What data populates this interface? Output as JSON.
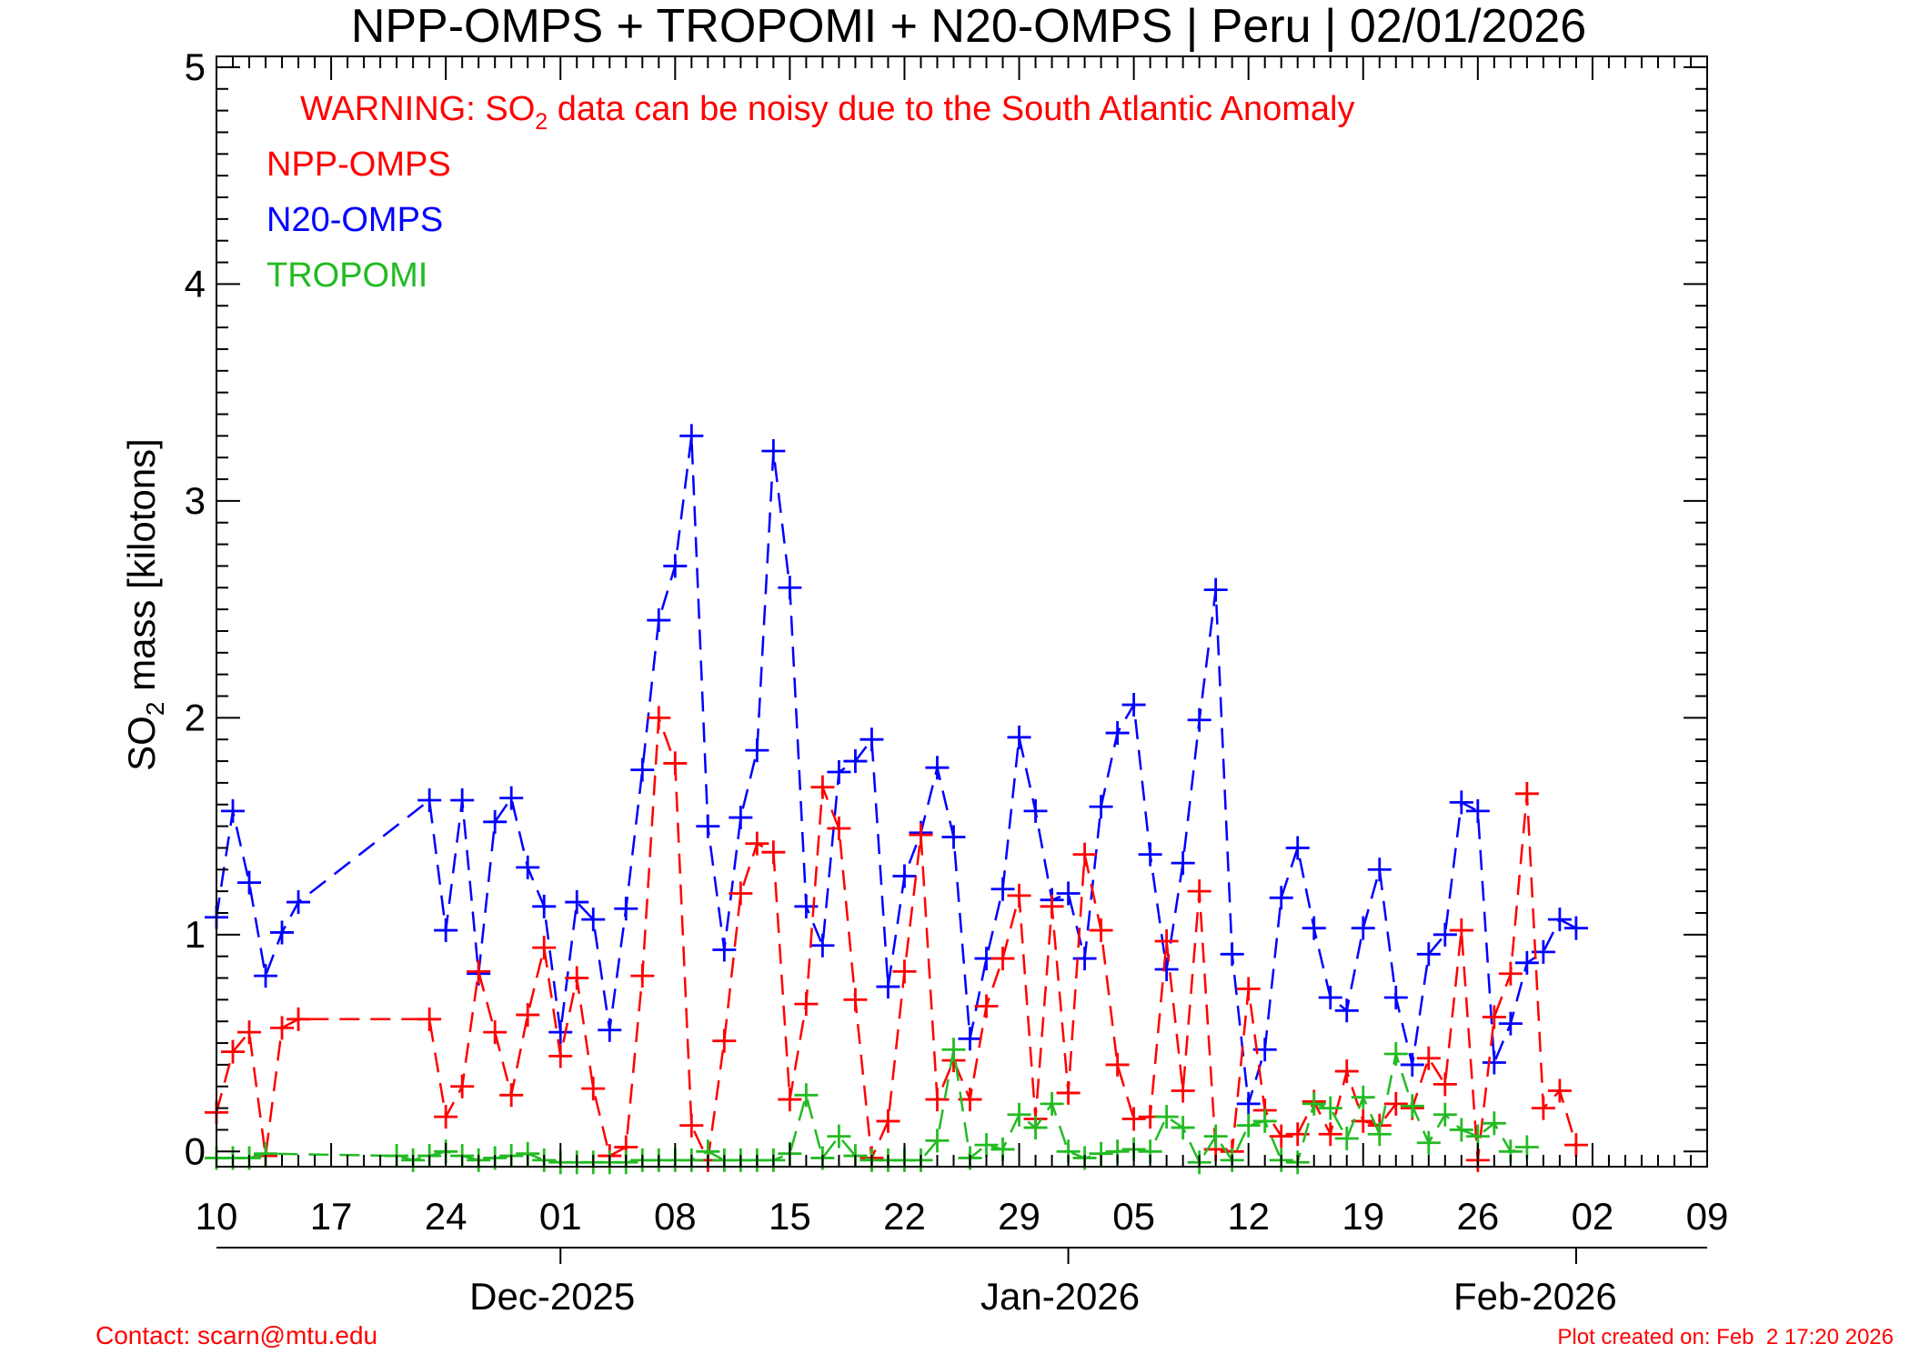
{
  "chart_data": {
    "type": "line",
    "title": "NPP-OMPS + TROPOMI + N20-OMPS | Peru | 02/01/2026",
    "ylabel_main": "SO",
    "ylabel_sub": "2",
    "ylabel_rest": " mass [kilotons]",
    "warning": {
      "prefix": "WARNING: SO",
      "sub": "2",
      "suffix": " data can be noisy due to the South Atlantic Anomaly"
    },
    "ylim": [
      -0.07,
      5.05
    ],
    "yticks": [
      0,
      1,
      2,
      3,
      4,
      5
    ],
    "x_day_range": [
      0,
      91
    ],
    "x_tick_labels": [
      "10",
      "17",
      "24",
      "01",
      "08",
      "15",
      "22",
      "29",
      "05",
      "12",
      "19",
      "26",
      "02",
      "09"
    ],
    "x_tick_days": [
      0,
      7,
      14,
      21,
      28,
      35,
      42,
      49,
      56,
      63,
      70,
      77,
      84,
      91
    ],
    "month_labels": [
      "Dec-2025",
      "Jan-2026",
      "Feb-2026"
    ],
    "month_label_days": [
      20.5,
      51.5,
      80.5
    ],
    "month_tick_days": [
      21,
      52,
      83
    ],
    "legend": [
      "NPP-OMPS",
      "N20-OMPS",
      "TROPOMI"
    ],
    "colors": {
      "NPP-OMPS": "#ff0000",
      "N20-OMPS": "#0000ff",
      "TROPOMI": "#22bb22"
    },
    "series": [
      {
        "name": "N20-OMPS",
        "points": [
          [
            0,
            1.08
          ],
          [
            1,
            1.57
          ],
          [
            2,
            1.24
          ],
          [
            3,
            0.81
          ],
          [
            4,
            1.01
          ],
          [
            5,
            1.15
          ],
          [
            13,
            1.62
          ],
          [
            14,
            1.02
          ],
          [
            15,
            1.62
          ],
          [
            16,
            0.82
          ],
          [
            17,
            1.52
          ],
          [
            18,
            1.63
          ],
          [
            19,
            1.31
          ],
          [
            20,
            1.13
          ],
          [
            21,
            0.55
          ],
          [
            22,
            1.15
          ],
          [
            23,
            1.07
          ],
          [
            24,
            0.56
          ],
          [
            25,
            1.12
          ],
          [
            26,
            1.76
          ],
          [
            27,
            2.45
          ],
          [
            28,
            2.7
          ],
          [
            29,
            3.3
          ],
          [
            30,
            1.5
          ],
          [
            31,
            0.93
          ],
          [
            32,
            1.54
          ],
          [
            33,
            1.85
          ],
          [
            34,
            3.23
          ],
          [
            35,
            2.6
          ],
          [
            36,
            1.13
          ],
          [
            37,
            0.95
          ],
          [
            38,
            1.75
          ],
          [
            39,
            1.8
          ],
          [
            40,
            1.9
          ],
          [
            41,
            0.76
          ],
          [
            42,
            1.27
          ],
          [
            43,
            1.47
          ],
          [
            44,
            1.77
          ],
          [
            45,
            1.45
          ],
          [
            46,
            0.52
          ],
          [
            47,
            0.89
          ],
          [
            48,
            1.21
          ],
          [
            49,
            1.91
          ],
          [
            50,
            1.57
          ],
          [
            51,
            1.16
          ],
          [
            52,
            1.19
          ],
          [
            53,
            0.89
          ],
          [
            54,
            1.59
          ],
          [
            55,
            1.93
          ],
          [
            56,
            2.06
          ],
          [
            57,
            1.37
          ],
          [
            58,
            0.84
          ],
          [
            59,
            1.33
          ],
          [
            60,
            1.99
          ],
          [
            61,
            2.59
          ],
          [
            62,
            0.91
          ],
          [
            63,
            0.22
          ],
          [
            64,
            0.47
          ],
          [
            65,
            1.17
          ],
          [
            66,
            1.4
          ],
          [
            67,
            1.03
          ],
          [
            68,
            0.71
          ],
          [
            69,
            0.65
          ],
          [
            70,
            1.03
          ],
          [
            71,
            1.3
          ],
          [
            72,
            0.71
          ],
          [
            73,
            0.4
          ],
          [
            74,
            0.91
          ],
          [
            75,
            1.0
          ],
          [
            76,
            1.61
          ],
          [
            77,
            1.57
          ],
          [
            78,
            0.41
          ],
          [
            79,
            0.59
          ],
          [
            80,
            0.87
          ],
          [
            81,
            0.92
          ],
          [
            82,
            1.07
          ],
          [
            83,
            1.03
          ]
        ]
      },
      {
        "name": "NPP-OMPS",
        "points": [
          [
            0,
            0.18
          ],
          [
            1,
            0.46
          ],
          [
            2,
            0.55
          ],
          [
            3,
            -0.02
          ],
          [
            4,
            0.57
          ],
          [
            5,
            0.61
          ],
          [
            13,
            0.61
          ],
          [
            14,
            0.16
          ],
          [
            15,
            0.3
          ],
          [
            16,
            0.83
          ],
          [
            17,
            0.55
          ],
          [
            18,
            0.26
          ],
          [
            19,
            0.63
          ],
          [
            20,
            0.94
          ],
          [
            21,
            0.44
          ],
          [
            22,
            0.8
          ],
          [
            23,
            0.29
          ],
          [
            24,
            -0.02
          ],
          [
            25,
            0.02
          ],
          [
            26,
            0.81
          ],
          [
            27,
            2.0
          ],
          [
            28,
            1.79
          ],
          [
            29,
            0.12
          ],
          [
            30,
            -0.04
          ],
          [
            31,
            0.51
          ],
          [
            32,
            1.19
          ],
          [
            33,
            1.42
          ],
          [
            34,
            1.38
          ],
          [
            35,
            0.24
          ],
          [
            36,
            0.68
          ],
          [
            37,
            1.68
          ],
          [
            38,
            1.49
          ],
          [
            39,
            0.7
          ],
          [
            40,
            -0.03
          ],
          [
            41,
            0.14
          ],
          [
            42,
            0.83
          ],
          [
            43,
            1.46
          ],
          [
            44,
            0.24
          ],
          [
            45,
            0.42
          ],
          [
            46,
            0.24
          ],
          [
            47,
            0.67
          ],
          [
            48,
            0.89
          ],
          [
            49,
            1.18
          ],
          [
            50,
            0.15
          ],
          [
            51,
            1.13
          ],
          [
            52,
            0.27
          ],
          [
            53,
            1.37
          ],
          [
            54,
            1.02
          ],
          [
            55,
            0.4
          ],
          [
            56,
            0.15
          ],
          [
            57,
            0.16
          ],
          [
            58,
            0.97
          ],
          [
            59,
            0.28
          ],
          [
            60,
            1.2
          ],
          [
            61,
            0.01
          ],
          [
            62,
            0.0
          ],
          [
            63,
            0.75
          ],
          [
            64,
            0.19
          ],
          [
            65,
            0.07
          ],
          [
            66,
            0.08
          ],
          [
            67,
            0.23
          ],
          [
            68,
            0.08
          ],
          [
            69,
            0.37
          ],
          [
            70,
            0.14
          ],
          [
            71,
            0.12
          ],
          [
            72,
            0.22
          ],
          [
            73,
            0.2
          ],
          [
            74,
            0.43
          ],
          [
            75,
            0.31
          ],
          [
            76,
            1.02
          ],
          [
            77,
            -0.04
          ],
          [
            78,
            0.62
          ],
          [
            79,
            0.82
          ],
          [
            80,
            1.65
          ],
          [
            81,
            0.2
          ],
          [
            82,
            0.28
          ],
          [
            83,
            0.03
          ]
        ]
      },
      {
        "name": "TROPOMI",
        "points": [
          [
            0,
            -0.03
          ],
          [
            1,
            -0.03
          ],
          [
            2,
            -0.03
          ],
          [
            3,
            -0.01
          ],
          [
            11,
            -0.02
          ],
          [
            12,
            -0.04
          ],
          [
            13,
            -0.02
          ],
          [
            14,
            0.0
          ],
          [
            15,
            -0.02
          ],
          [
            16,
            -0.04
          ],
          [
            17,
            -0.03
          ],
          [
            18,
            -0.02
          ],
          [
            19,
            -0.01
          ],
          [
            20,
            -0.04
          ],
          [
            21,
            -0.05
          ],
          [
            22,
            -0.05
          ],
          [
            23,
            -0.05
          ],
          [
            24,
            -0.05
          ],
          [
            25,
            -0.05
          ],
          [
            26,
            -0.04
          ],
          [
            27,
            -0.04
          ],
          [
            28,
            -0.04
          ],
          [
            29,
            -0.04
          ],
          [
            30,
            0.0
          ],
          [
            31,
            -0.04
          ],
          [
            32,
            -0.04
          ],
          [
            33,
            -0.04
          ],
          [
            34,
            -0.04
          ],
          [
            35,
            -0.01
          ],
          [
            36,
            0.26
          ],
          [
            37,
            -0.03
          ],
          [
            38,
            0.07
          ],
          [
            39,
            -0.02
          ],
          [
            40,
            -0.04
          ],
          [
            41,
            -0.04
          ],
          [
            42,
            -0.04
          ],
          [
            43,
            -0.04
          ],
          [
            44,
            0.05
          ],
          [
            45,
            0.47
          ],
          [
            46,
            -0.03
          ],
          [
            47,
            0.03
          ],
          [
            48,
            0.01
          ],
          [
            49,
            0.17
          ],
          [
            50,
            0.11
          ],
          [
            51,
            0.22
          ],
          [
            52,
            0.0
          ],
          [
            53,
            -0.03
          ],
          [
            54,
            -0.01
          ],
          [
            55,
            0.0
          ],
          [
            56,
            0.01
          ],
          [
            57,
            0.0
          ],
          [
            58,
            0.16
          ],
          [
            59,
            0.11
          ],
          [
            60,
            -0.05
          ],
          [
            61,
            0.07
          ],
          [
            62,
            -0.04
          ],
          [
            63,
            0.12
          ],
          [
            64,
            0.14
          ],
          [
            65,
            -0.04
          ],
          [
            66,
            -0.05
          ],
          [
            67,
            0.22
          ],
          [
            68,
            0.2
          ],
          [
            69,
            0.06
          ],
          [
            70,
            0.25
          ],
          [
            71,
            0.08
          ],
          [
            72,
            0.45
          ],
          [
            73,
            0.21
          ],
          [
            74,
            0.04
          ],
          [
            75,
            0.17
          ],
          [
            76,
            0.1
          ],
          [
            77,
            0.07
          ],
          [
            78,
            0.13
          ],
          [
            79,
            0.0
          ],
          [
            80,
            0.02
          ]
        ]
      }
    ],
    "footer_left": "Contact: scarn@mtu.edu",
    "footer_right": "Plot created on: Feb  2 17:20 2026"
  }
}
